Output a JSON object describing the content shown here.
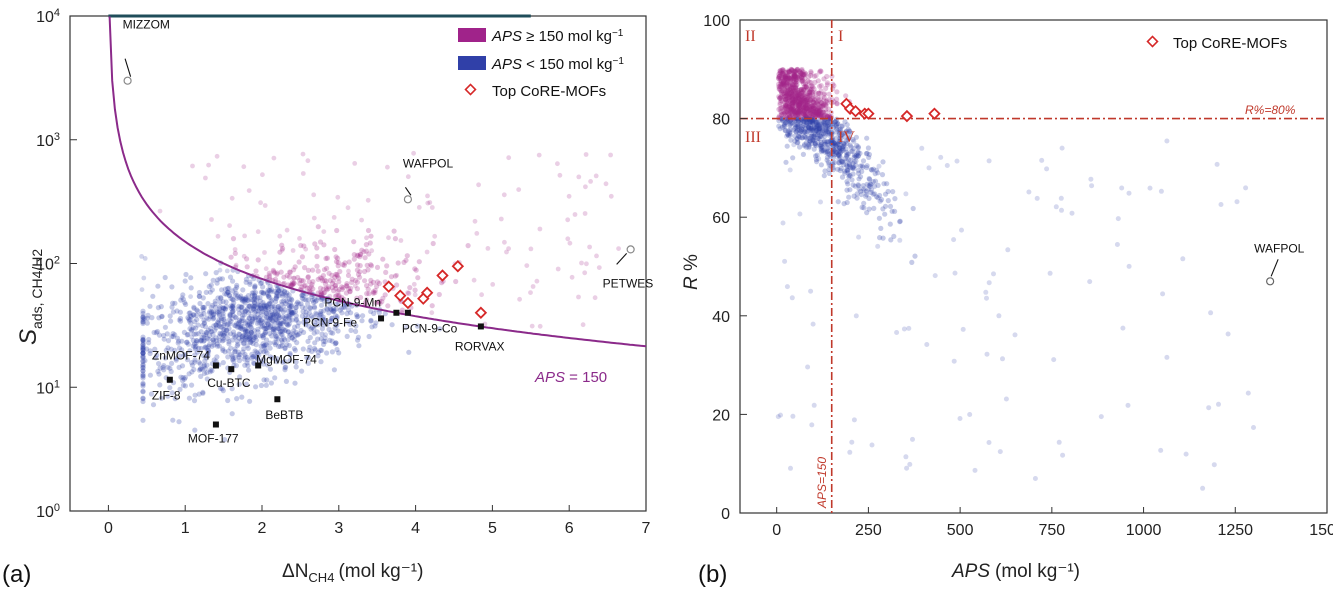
{
  "chart_data": [
    {
      "panel_label": "(a)",
      "type": "scatter",
      "xlabel": "ΔN",
      "xlabel_sub": "CH4",
      "xlabel_units": "(mol kg⁻¹)",
      "ylabel": "S",
      "ylabel_sub": "ads, CH4/H2",
      "xlim": [
        -0.5,
        7
      ],
      "ylim_log10": [
        0,
        4
      ],
      "y_scale": "log",
      "x_ticks": [
        "0",
        "1",
        "2",
        "3",
        "4",
        "5",
        "6",
        "7"
      ],
      "y_ticks": [
        {
          "base": "10",
          "exp": "0"
        },
        {
          "base": "10",
          "exp": "1"
        },
        {
          "base": "10",
          "exp": "2"
        },
        {
          "base": "10",
          "exp": "3"
        },
        {
          "base": "10",
          "exp": "4"
        }
      ],
      "legend": [
        {
          "label_pre": "APS",
          "label_post": " ≥ 150 mol kg",
          "sup": "−1",
          "kind": "box",
          "color": "#a0238a"
        },
        {
          "label_pre": "APS",
          "label_post": " < 150 mol kg",
          "sup": "−1",
          "kind": "box",
          "color": "#3040a8"
        },
        {
          "label_pre": "",
          "label_post": "Top CoRE-MOFs",
          "sup": "",
          "kind": "diamond",
          "color": "#d62828"
        }
      ],
      "curve_label_pre": "APS",
      "curve_label_post": " = 150",
      "curve_constant": 150,
      "curve_color": "#8b2a8a",
      "top_core_mofs": [
        {
          "x": 3.65,
          "y": 65
        },
        {
          "x": 3.8,
          "y": 55
        },
        {
          "x": 3.9,
          "y": 48
        },
        {
          "x": 4.15,
          "y": 58
        },
        {
          "x": 4.35,
          "y": 80
        },
        {
          "x": 4.55,
          "y": 95
        },
        {
          "x": 4.85,
          "y": 40
        },
        {
          "x": 4.1,
          "y": 52
        }
      ],
      "labeled_points": [
        {
          "name": "MIZZOM",
          "x": 0.25,
          "y": 3000,
          "marker": "circle"
        },
        {
          "name": "WAFPOL",
          "x": 3.9,
          "y": 330,
          "marker": "circle"
        },
        {
          "name": "PETWES",
          "x": 6.8,
          "y": 130,
          "marker": "circle"
        },
        {
          "name": "PCN-9-Mn",
          "x": 3.75,
          "y": 40,
          "marker": "square"
        },
        {
          "name": "PCN-9-Fe",
          "x": 3.55,
          "y": 36,
          "marker": "square"
        },
        {
          "name": "PCN-9-Co",
          "x": 3.9,
          "y": 40,
          "marker": "square"
        },
        {
          "name": "RORVAX",
          "x": 4.85,
          "y": 31,
          "marker": "square"
        },
        {
          "name": "ZnMOF-74",
          "x": 1.4,
          "y": 15,
          "marker": "square"
        },
        {
          "name": "Cu-BTC",
          "x": 1.6,
          "y": 14,
          "marker": "square"
        },
        {
          "name": "MgMOF-74",
          "x": 1.95,
          "y": 15,
          "marker": "square"
        },
        {
          "name": "ZIF-8",
          "x": 0.8,
          "y": 11.5,
          "marker": "square"
        },
        {
          "name": "BeBTB",
          "x": 2.2,
          "y": 8,
          "marker": "square"
        },
        {
          "name": "MOF-177",
          "x": 1.4,
          "y": 5,
          "marker": "square"
        }
      ]
    },
    {
      "panel_label": "(b)",
      "type": "scatter",
      "xlabel": "APS",
      "xlabel_units": "(mol kg⁻¹)",
      "ylabel": "R",
      "ylabel_post": " %",
      "xlim": [
        -100,
        1500
      ],
      "ylim": [
        0,
        100
      ],
      "x_ticks": [
        "0",
        "250",
        "500",
        "750",
        "1000",
        "1250",
        "1500"
      ],
      "y_ticks": [
        "0",
        "20",
        "40",
        "60",
        "80",
        "100"
      ],
      "legend": [
        {
          "label": "Top CoRE-MOFs",
          "kind": "diamond",
          "color": "#d62828"
        }
      ],
      "vline": {
        "x": 150,
        "label": "APS=150"
      },
      "hline": {
        "y": 80,
        "label": "R%=80%"
      },
      "quadrants": [
        "I",
        "II",
        "III",
        "IV"
      ],
      "top_core_mofs": [
        {
          "x": 190,
          "y": 83
        },
        {
          "x": 200,
          "y": 82
        },
        {
          "x": 215,
          "y": 81.5
        },
        {
          "x": 240,
          "y": 81
        },
        {
          "x": 250,
          "y": 81
        },
        {
          "x": 355,
          "y": 80.5
        },
        {
          "x": 430,
          "y": 81
        }
      ],
      "labeled_points": [
        {
          "name": "WAFPOL",
          "x": 1345,
          "y": 47,
          "marker": "circle"
        }
      ]
    }
  ]
}
